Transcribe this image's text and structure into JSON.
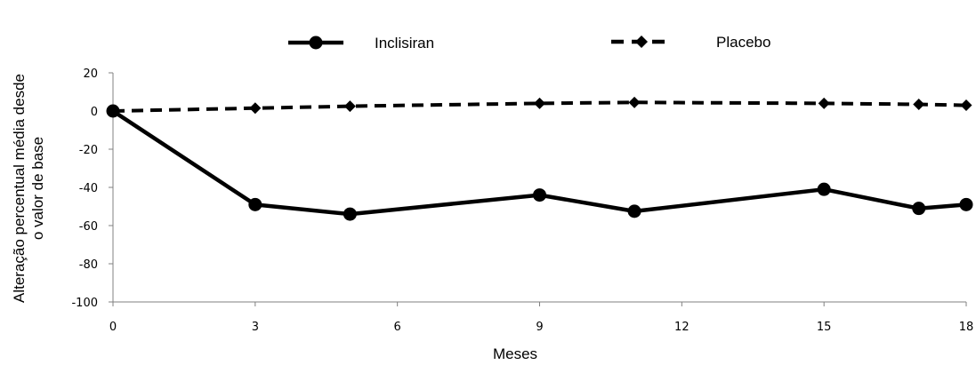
{
  "chart_data": {
    "type": "line",
    "title": "",
    "xlabel": "Meses",
    "ylabel_lines": [
      "Alteração percentual média desde",
      "o valor de base"
    ],
    "xlim": [
      0,
      18
    ],
    "ylim": [
      -100,
      20
    ],
    "xticks": [
      0,
      3,
      6,
      9,
      12,
      15,
      18
    ],
    "yticks": [
      20,
      0,
      -20,
      -40,
      -60,
      -80,
      -100
    ],
    "grid": false,
    "legend_position": "top",
    "series": [
      {
        "name": "Inclisiran",
        "style": "solid",
        "marker": "circle",
        "color": "#000000",
        "x": [
          0,
          3,
          5,
          9,
          11,
          15,
          17,
          18
        ],
        "y": [
          0,
          -49,
          -54,
          -44,
          -52.5,
          -41,
          -51,
          -49
        ]
      },
      {
        "name": "Placebo",
        "style": "dashed",
        "marker": "diamond",
        "color": "#000000",
        "x": [
          0,
          3,
          5,
          9,
          11,
          15,
          17,
          18
        ],
        "y": [
          0,
          1.5,
          2.5,
          4,
          4.5,
          4,
          3.5,
          3
        ]
      }
    ]
  }
}
